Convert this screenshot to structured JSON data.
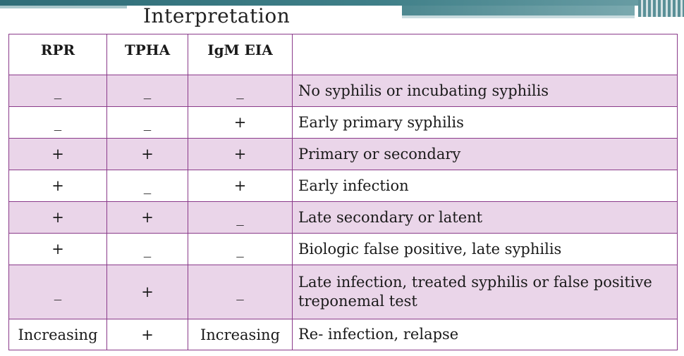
{
  "title": "Interpretation",
  "table": {
    "headers": [
      "RPR",
      "TPHA",
      "IgM EIA",
      ""
    ],
    "rows": [
      {
        "rpr": "_",
        "tpha": "_",
        "igm": "_",
        "interpretation": "No syphilis or incubating syphilis"
      },
      {
        "rpr": "_",
        "tpha": "_",
        "igm": "+",
        "interpretation": "Early primary syphilis"
      },
      {
        "rpr": "+",
        "tpha": "+",
        "igm": "+",
        "interpretation": "Primary or secondary"
      },
      {
        "rpr": "+",
        "tpha": "_",
        "igm": "+",
        "interpretation": "Early infection"
      },
      {
        "rpr": "+",
        "tpha": "+",
        "igm": "_",
        "interpretation": "Late secondary or latent"
      },
      {
        "rpr": "+",
        "tpha": "_",
        "igm": "_",
        "interpretation": "Biologic false positive, late syphilis"
      },
      {
        "rpr": "_",
        "tpha": "+",
        "igm": "_",
        "interpretation": "Late infection, treated syphilis or false positive treponemal test"
      },
      {
        "rpr": "Increasing",
        "tpha": "+",
        "igm": "Increasing",
        "interpretation": "Re- infection, relapse"
      }
    ]
  },
  "colors": {
    "border": "#8a3a8a",
    "shaded_row": "#ead5e9",
    "accent_bar": "#2f6d78"
  }
}
